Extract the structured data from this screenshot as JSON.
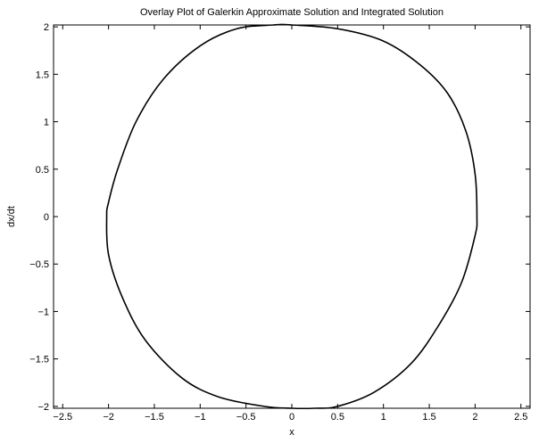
{
  "chart_data": {
    "type": "line",
    "title": "Overlay Plot of Galerkin Approximate Solution and Integrated Solution",
    "xlabel": "x",
    "ylabel": "dx/dt",
    "xlim": [
      -2.6,
      2.6
    ],
    "ylim": [
      -2.02,
      2.02
    ],
    "xticks": [
      -2.5,
      -2,
      -1.5,
      -1,
      -0.5,
      0,
      0.5,
      1,
      1.5,
      2,
      2.5
    ],
    "yticks": [
      -2,
      -1.5,
      -1,
      -0.5,
      0,
      0.5,
      1,
      1.5,
      2
    ],
    "xtick_labels": [
      "−2.5",
      "−2",
      "−1.5",
      "−1",
      "−0.5",
      "0",
      "0.5",
      "1",
      "1.5",
      "2",
      "2.5"
    ],
    "ytick_labels": [
      "−2",
      "−1.5",
      "−1",
      "−0.5",
      "0",
      "0.5",
      "1",
      "1.5",
      "2"
    ],
    "grid": false,
    "line_color": "#000000",
    "series": [
      {
        "x": [
          2.02,
          2.0,
          1.9,
          1.7,
          1.4,
          1.0,
          0.5,
          0.0,
          -0.2,
          -0.6,
          -1.0,
          -1.4,
          -1.7,
          -1.9,
          -2.0,
          -2.02,
          -2.0,
          -1.85,
          -1.6,
          -1.2,
          -0.8,
          -0.3,
          0.0,
          0.25,
          0.5,
          0.9,
          1.3,
          1.6,
          1.85,
          2.0,
          2.02
        ],
        "y": [
          0.0,
          0.45,
          0.9,
          1.3,
          1.6,
          1.85,
          1.98,
          2.02,
          2.02,
          1.98,
          1.8,
          1.45,
          1.0,
          0.5,
          0.15,
          0.0,
          -0.4,
          -0.85,
          -1.3,
          -1.7,
          -1.9,
          -2.0,
          -2.02,
          -2.02,
          -2.0,
          -1.85,
          -1.55,
          -1.15,
          -0.7,
          -0.2,
          0.0
        ]
      }
    ]
  }
}
